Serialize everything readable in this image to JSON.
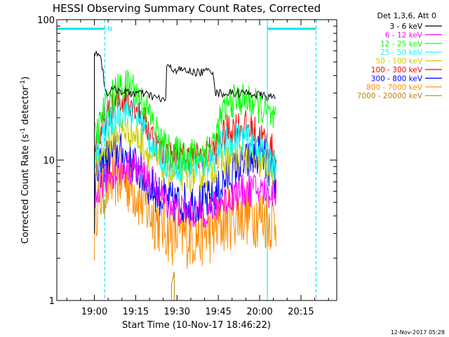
{
  "chart_data": {
    "type": "line",
    "title": "HESSI Observing Summary Count Rates, Corrected",
    "xlabel": "Start Time (10-Nov-17 18:46:22)",
    "ylabel_main": "Corrected Count Rate (s",
    "ylabel_sup1": "-1",
    "ylabel_mid": " detector",
    "ylabel_sup2": "-1",
    "ylabel_end": ")",
    "x_ticks": [
      {
        "t": 60,
        "label": "19:00"
      },
      {
        "t": 75,
        "label": "19:15"
      },
      {
        "t": 90,
        "label": "19:30"
      },
      {
        "t": 105,
        "label": "19:45"
      },
      {
        "t": 120,
        "label": "20:00"
      },
      {
        "t": 135,
        "label": "20:15"
      }
    ],
    "xlim": [
      46.37,
      148.0
    ],
    "y_scale": "log",
    "ylim": [
      1,
      100
    ],
    "y_ticks": [
      {
        "v": 100,
        "label": "100"
      },
      {
        "v": 10,
        "label": "10"
      },
      {
        "v": 1,
        "label": "1"
      }
    ],
    "legend_title": "Det 1,3,6, Att 0",
    "series": [
      {
        "name": "3 - 6 keV",
        "color": "#000000",
        "points": [
          [
            60,
            3
          ],
          [
            60,
            58
          ],
          [
            62,
            58
          ],
          [
            64,
            30
          ],
          [
            68,
            32
          ],
          [
            72,
            30
          ],
          [
            76,
            30
          ],
          [
            80,
            29
          ],
          [
            84,
            27
          ],
          [
            86,
            27
          ],
          [
            86,
            46
          ],
          [
            90,
            44
          ],
          [
            94,
            43
          ],
          [
            98,
            42
          ],
          [
            101,
            43
          ],
          [
            103,
            44
          ],
          [
            104,
            30
          ],
          [
            108,
            30
          ],
          [
            112,
            30
          ],
          [
            116,
            30
          ],
          [
            120,
            29
          ],
          [
            124,
            28
          ],
          [
            126,
            28
          ]
        ]
      },
      {
        "name": "6 - 12 keV",
        "color": "#ff00ff",
        "points": [
          [
            60,
            4.5
          ],
          [
            62,
            6.5
          ],
          [
            66,
            8
          ],
          [
            70,
            8.5
          ],
          [
            74,
            9
          ],
          [
            78,
            8
          ],
          [
            82,
            6.5
          ],
          [
            86,
            5.2
          ],
          [
            90,
            4.4
          ],
          [
            94,
            4.2
          ],
          [
            98,
            4.2
          ],
          [
            102,
            4.4
          ],
          [
            106,
            5
          ],
          [
            110,
            5.5
          ],
          [
            114,
            6
          ],
          [
            118,
            6.2
          ],
          [
            122,
            6
          ],
          [
            126,
            5.8
          ]
        ]
      },
      {
        "name": "12 - 25 keV",
        "color": "#00ff00",
        "points": [
          [
            60,
            14
          ],
          [
            62,
            18
          ],
          [
            64,
            24
          ],
          [
            66,
            28
          ],
          [
            68,
            31
          ],
          [
            70,
            33
          ],
          [
            72,
            34
          ],
          [
            74,
            33
          ],
          [
            76,
            29
          ],
          [
            78,
            25
          ],
          [
            80,
            21
          ],
          [
            82,
            17
          ],
          [
            84,
            14
          ],
          [
            86,
            12
          ],
          [
            88,
            11.5
          ],
          [
            92,
            11
          ],
          [
            96,
            11
          ],
          [
            100,
            11.5
          ],
          [
            104,
            14
          ],
          [
            106,
            20
          ],
          [
            108,
            24
          ],
          [
            110,
            26
          ],
          [
            112,
            27
          ],
          [
            114,
            27
          ],
          [
            116,
            26
          ],
          [
            118,
            25
          ],
          [
            120,
            24
          ],
          [
            122,
            22
          ],
          [
            124,
            20
          ],
          [
            126,
            18
          ]
        ]
      },
      {
        "name": "25 - 50 keV",
        "color": "#00ffff",
        "points": [
          [
            60,
            11
          ],
          [
            62,
            13
          ],
          [
            64,
            16
          ],
          [
            66,
            19
          ],
          [
            68,
            21
          ],
          [
            70,
            22
          ],
          [
            72,
            23
          ],
          [
            74,
            22
          ],
          [
            76,
            20
          ],
          [
            78,
            17
          ],
          [
            80,
            14.5
          ],
          [
            82,
            12.5
          ],
          [
            84,
            11
          ],
          [
            86,
            10
          ],
          [
            88,
            9.5
          ],
          [
            92,
            9.2
          ],
          [
            96,
            9.2
          ],
          [
            100,
            9.5
          ],
          [
            104,
            11
          ],
          [
            106,
            12.5
          ],
          [
            108,
            13.5
          ],
          [
            110,
            14
          ],
          [
            112,
            14.5
          ],
          [
            114,
            14.5
          ],
          [
            116,
            14
          ],
          [
            118,
            13.5
          ],
          [
            120,
            12.5
          ],
          [
            122,
            11.5
          ],
          [
            124,
            10
          ],
          [
            126,
            9
          ]
        ]
      },
      {
        "name": "50 - 100 keV",
        "color": "#cccc00",
        "points": [
          [
            60,
            9
          ],
          [
            62,
            10.5
          ],
          [
            64,
            12.5
          ],
          [
            66,
            14
          ],
          [
            68,
            15.5
          ],
          [
            70,
            16.5
          ],
          [
            72,
            16
          ],
          [
            74,
            15.5
          ],
          [
            76,
            14
          ],
          [
            78,
            12.5
          ],
          [
            80,
            11
          ],
          [
            82,
            10
          ],
          [
            84,
            9.2
          ],
          [
            86,
            8.5
          ],
          [
            88,
            8
          ],
          [
            92,
            7.8
          ],
          [
            96,
            7.8
          ],
          [
            100,
            8
          ],
          [
            104,
            9
          ],
          [
            106,
            9.5
          ],
          [
            108,
            10
          ],
          [
            110,
            10.3
          ],
          [
            112,
            10.5
          ],
          [
            114,
            10.5
          ],
          [
            116,
            10.3
          ],
          [
            118,
            10
          ],
          [
            120,
            9.5
          ],
          [
            122,
            9
          ],
          [
            124,
            8.5
          ],
          [
            126,
            7.8
          ]
        ]
      },
      {
        "name": "100 - 300 keV",
        "color": "#ff0000",
        "points": [
          [
            60,
            12
          ],
          [
            62,
            15
          ],
          [
            64,
            19
          ],
          [
            66,
            22
          ],
          [
            68,
            25
          ],
          [
            70,
            27
          ],
          [
            72,
            28
          ],
          [
            74,
            26
          ],
          [
            76,
            23
          ],
          [
            78,
            19
          ],
          [
            80,
            16
          ],
          [
            82,
            13.5
          ],
          [
            84,
            11.8
          ],
          [
            86,
            11
          ],
          [
            88,
            10.5
          ],
          [
            92,
            10.3
          ],
          [
            96,
            10.3
          ],
          [
            100,
            10.5
          ],
          [
            104,
            12
          ],
          [
            106,
            14
          ],
          [
            108,
            16
          ],
          [
            110,
            17
          ],
          [
            112,
            17.5
          ],
          [
            114,
            17.5
          ],
          [
            116,
            17
          ],
          [
            118,
            16
          ],
          [
            120,
            15
          ],
          [
            122,
            13.5
          ],
          [
            124,
            12
          ],
          [
            126,
            11
          ]
        ]
      },
      {
        "name": "300 - 800 keV",
        "color": "#0000ff",
        "points": [
          [
            60,
            7
          ],
          [
            62,
            8.5
          ],
          [
            64,
            10
          ],
          [
            66,
            11
          ],
          [
            68,
            11.5
          ],
          [
            70,
            11
          ],
          [
            72,
            10.5
          ],
          [
            74,
            9.5
          ],
          [
            76,
            8.5
          ],
          [
            78,
            7.5
          ],
          [
            80,
            6.5
          ],
          [
            82,
            6
          ],
          [
            84,
            5.5
          ],
          [
            86,
            5.2
          ],
          [
            88,
            5
          ],
          [
            92,
            5
          ],
          [
            96,
            5
          ],
          [
            100,
            5
          ],
          [
            104,
            5.5
          ],
          [
            106,
            6.5
          ],
          [
            108,
            7.5
          ],
          [
            110,
            8.2
          ],
          [
            112,
            8.8
          ],
          [
            114,
            9.2
          ],
          [
            116,
            9.8
          ],
          [
            118,
            10.3
          ],
          [
            120,
            10.8
          ],
          [
            122,
            10
          ],
          [
            124,
            8
          ],
          [
            126,
            6.5
          ]
        ]
      },
      {
        "name": "800 - 7000 keV",
        "color": "#ff8c00",
        "points": [
          [
            60,
            3
          ],
          [
            60,
            4.5
          ],
          [
            62,
            5.5
          ],
          [
            64,
            6.5
          ],
          [
            66,
            7.2
          ],
          [
            68,
            7.8
          ],
          [
            70,
            7.5
          ],
          [
            72,
            7
          ],
          [
            74,
            6.5
          ],
          [
            76,
            5.5
          ],
          [
            78,
            4.8
          ],
          [
            80,
            4.3
          ],
          [
            82,
            3.9
          ],
          [
            84,
            3.6
          ],
          [
            86,
            3.3
          ],
          [
            88,
            3
          ],
          [
            92,
            2.9
          ],
          [
            96,
            2.9
          ],
          [
            100,
            3
          ],
          [
            104,
            3.2
          ],
          [
            106,
            3.5
          ],
          [
            108,
            3.8
          ],
          [
            110,
            4
          ],
          [
            112,
            4.2
          ],
          [
            114,
            4.2
          ],
          [
            116,
            4.2
          ],
          [
            118,
            4.1
          ],
          [
            120,
            4
          ],
          [
            122,
            3.9
          ],
          [
            124,
            3.8
          ],
          [
            126,
            3.7
          ]
        ]
      },
      {
        "name": "7000 - 20000 keV",
        "color": "#b8860b",
        "points": [
          [
            88,
            1
          ],
          [
            88,
            1.3
          ],
          [
            89,
            1.6
          ],
          [
            89,
            1
          ],
          [
            89.5,
            1
          ]
        ]
      }
    ],
    "attenuator_bars": [
      {
        "start": 46.37,
        "end": 63.8,
        "label": "N"
      },
      {
        "start": 122.8,
        "end": 140.5,
        "label": ""
      }
    ],
    "spans": [
      {
        "line": 63.8,
        "style": "dashed"
      },
      {
        "line": 122.8,
        "style": "solid"
      },
      {
        "line": 140.5,
        "style": "dashed"
      }
    ],
    "legend_placement": "right",
    "grid": false
  },
  "footer": {
    "timestamp": "12-Nov-2017 05:28"
  }
}
